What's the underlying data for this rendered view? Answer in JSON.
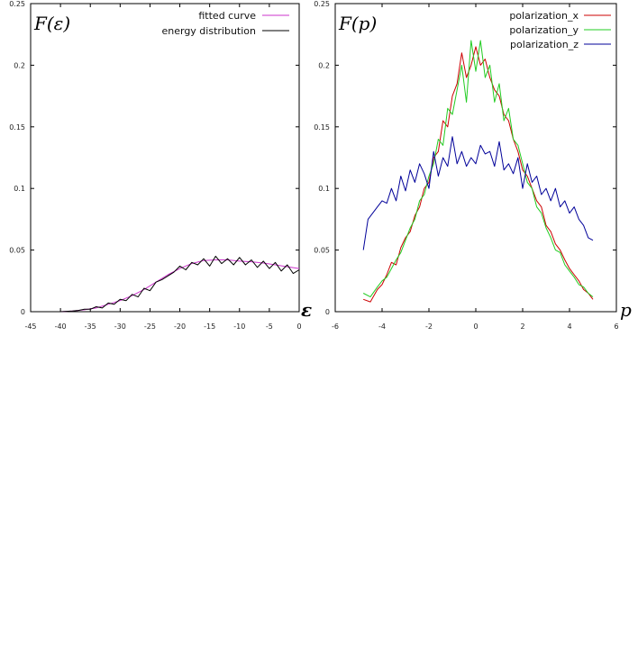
{
  "chart_data": [
    {
      "type": "line",
      "ylabel": "F(ε)",
      "xlabel": "ε",
      "xlim": [
        -45,
        0
      ],
      "ylim": [
        0,
        0.25
      ],
      "xticks": [
        -45,
        -40,
        -35,
        -30,
        -25,
        -20,
        -15,
        -10,
        -5,
        0
      ],
      "xtick_labels": [
        "-45",
        "-40",
        "-35",
        "-30",
        "-25",
        "-20",
        "-15",
        "-10",
        "-5",
        "0"
      ],
      "yticks": [
        0,
        0.05,
        0.1,
        0.15,
        0.2,
        0.25
      ],
      "ytick_labels": [
        "0",
        "0.05",
        "0.1",
        "0.15",
        "0.2",
        "0.25"
      ],
      "grid": false,
      "legend_position": "top-right",
      "series": [
        {
          "name": "fitted curve",
          "color": "#cc33cc",
          "x": [
            -45,
            -42,
            -40,
            -38,
            -36,
            -34,
            -32,
            -30,
            -28,
            -26,
            -24,
            -22,
            -20,
            -18,
            -16,
            -14,
            -12,
            -10,
            -8,
            -6,
            -4,
            -2,
            0
          ],
          "y": [
            0,
            0,
            0,
            0.0005,
            0.0015,
            0.003,
            0.006,
            0.009,
            0.013,
            0.018,
            0.024,
            0.03,
            0.035,
            0.039,
            0.0415,
            0.042,
            0.042,
            0.041,
            0.0405,
            0.0395,
            0.038,
            0.0365,
            0.035
          ]
        },
        {
          "name": "energy distribution",
          "color": "#000000",
          "x": [
            -45,
            -42,
            -40,
            -38,
            -37,
            -36,
            -35,
            -34,
            -33,
            -32,
            -31,
            -30,
            -29,
            -28,
            -27,
            -26,
            -25,
            -24,
            -23,
            -22,
            -21,
            -20,
            -19,
            -18,
            -17,
            -16,
            -15,
            -14,
            -13,
            -12,
            -11,
            -10,
            -9,
            -8,
            -7,
            -6,
            -5,
            -4,
            -3,
            -2,
            -1,
            0
          ],
          "y": [
            0,
            0,
            0,
            0.0005,
            0.001,
            0.002,
            0.002,
            0.004,
            0.003,
            0.007,
            0.006,
            0.01,
            0.009,
            0.014,
            0.012,
            0.019,
            0.017,
            0.024,
            0.026,
            0.029,
            0.032,
            0.037,
            0.034,
            0.04,
            0.038,
            0.043,
            0.037,
            0.045,
            0.039,
            0.043,
            0.038,
            0.044,
            0.038,
            0.042,
            0.036,
            0.041,
            0.035,
            0.04,
            0.033,
            0.038,
            0.031,
            0.034
          ]
        }
      ]
    },
    {
      "type": "line",
      "ylabel": "F(p)",
      "xlabel": "p",
      "xlim": [
        -6,
        6
      ],
      "ylim": [
        0,
        0.25
      ],
      "xticks": [
        -6,
        -4,
        -2,
        0,
        2,
        4,
        6
      ],
      "xtick_labels": [
        "-6",
        "-4",
        "-2",
        "0",
        "2",
        "4",
        "6"
      ],
      "yticks": [
        0,
        0.05,
        0.1,
        0.15,
        0.2,
        0.25
      ],
      "ytick_labels": [
        "0",
        "0.05",
        "0.1",
        "0.15",
        "0.2",
        "0.25"
      ],
      "grid": false,
      "legend_position": "top-right",
      "series": [
        {
          "name": "polarization_x",
          "color": "#cc0000",
          "x": [
            -4.8,
            -4.5,
            -4.2,
            -4.0,
            -3.8,
            -3.6,
            -3.4,
            -3.2,
            -3.0,
            -2.8,
            -2.6,
            -2.4,
            -2.2,
            -2.0,
            -1.8,
            -1.6,
            -1.4,
            -1.2,
            -1.0,
            -0.8,
            -0.6,
            -0.4,
            -0.2,
            0.0,
            0.2,
            0.4,
            0.6,
            0.8,
            1.0,
            1.2,
            1.4,
            1.6,
            1.8,
            2.0,
            2.2,
            2.4,
            2.6,
            2.8,
            3.0,
            3.2,
            3.4,
            3.6,
            3.8,
            4.0,
            4.2,
            4.4,
            4.6,
            4.8,
            5.0
          ],
          "y": [
            0.01,
            0.008,
            0.018,
            0.022,
            0.03,
            0.04,
            0.038,
            0.052,
            0.06,
            0.065,
            0.078,
            0.085,
            0.1,
            0.105,
            0.125,
            0.13,
            0.155,
            0.15,
            0.175,
            0.185,
            0.21,
            0.19,
            0.2,
            0.215,
            0.2,
            0.205,
            0.19,
            0.18,
            0.175,
            0.16,
            0.155,
            0.14,
            0.13,
            0.115,
            0.11,
            0.1,
            0.09,
            0.085,
            0.07,
            0.065,
            0.055,
            0.05,
            0.042,
            0.035,
            0.03,
            0.025,
            0.018,
            0.015,
            0.01
          ]
        },
        {
          "name": "polarization_y",
          "color": "#22cc22",
          "x": [
            -4.8,
            -4.5,
            -4.2,
            -4.0,
            -3.8,
            -3.6,
            -3.4,
            -3.2,
            -3.0,
            -2.8,
            -2.6,
            -2.4,
            -2.2,
            -2.0,
            -1.8,
            -1.6,
            -1.4,
            -1.2,
            -1.0,
            -0.8,
            -0.6,
            -0.4,
            -0.2,
            0.0,
            0.2,
            0.4,
            0.6,
            0.8,
            1.0,
            1.2,
            1.4,
            1.6,
            1.8,
            2.0,
            2.2,
            2.4,
            2.6,
            2.8,
            3.0,
            3.2,
            3.4,
            3.6,
            3.8,
            4.0,
            4.2,
            4.4,
            4.6,
            4.8,
            5.0
          ],
          "y": [
            0.015,
            0.012,
            0.02,
            0.025,
            0.028,
            0.035,
            0.042,
            0.048,
            0.058,
            0.068,
            0.075,
            0.09,
            0.095,
            0.11,
            0.12,
            0.14,
            0.135,
            0.165,
            0.16,
            0.18,
            0.2,
            0.17,
            0.22,
            0.195,
            0.22,
            0.19,
            0.2,
            0.17,
            0.185,
            0.155,
            0.165,
            0.14,
            0.135,
            0.12,
            0.105,
            0.1,
            0.085,
            0.08,
            0.068,
            0.06,
            0.05,
            0.048,
            0.038,
            0.033,
            0.028,
            0.022,
            0.02,
            0.015,
            0.012
          ]
        },
        {
          "name": "polarization_z",
          "color": "#000099",
          "x": [
            -4.8,
            -4.6,
            -4.4,
            -4.2,
            -4.0,
            -3.8,
            -3.6,
            -3.4,
            -3.2,
            -3.0,
            -2.8,
            -2.6,
            -2.4,
            -2.2,
            -2.0,
            -1.8,
            -1.6,
            -1.4,
            -1.2,
            -1.0,
            -0.8,
            -0.6,
            -0.4,
            -0.2,
            0.0,
            0.2,
            0.4,
            0.6,
            0.8,
            1.0,
            1.2,
            1.4,
            1.6,
            1.8,
            2.0,
            2.2,
            2.4,
            2.6,
            2.8,
            3.0,
            3.2,
            3.4,
            3.6,
            3.8,
            4.0,
            4.2,
            4.4,
            4.6,
            4.8,
            5.0
          ],
          "y": [
            0.05,
            0.075,
            0.08,
            0.085,
            0.09,
            0.088,
            0.1,
            0.09,
            0.11,
            0.098,
            0.115,
            0.105,
            0.12,
            0.112,
            0.1,
            0.13,
            0.11,
            0.125,
            0.118,
            0.142,
            0.12,
            0.13,
            0.118,
            0.125,
            0.12,
            0.135,
            0.128,
            0.13,
            0.118,
            0.138,
            0.115,
            0.12,
            0.112,
            0.125,
            0.1,
            0.12,
            0.105,
            0.11,
            0.095,
            0.1,
            0.09,
            0.1,
            0.085,
            0.09,
            0.08,
            0.085,
            0.075,
            0.07,
            0.06,
            0.058
          ]
        }
      ]
    }
  ]
}
